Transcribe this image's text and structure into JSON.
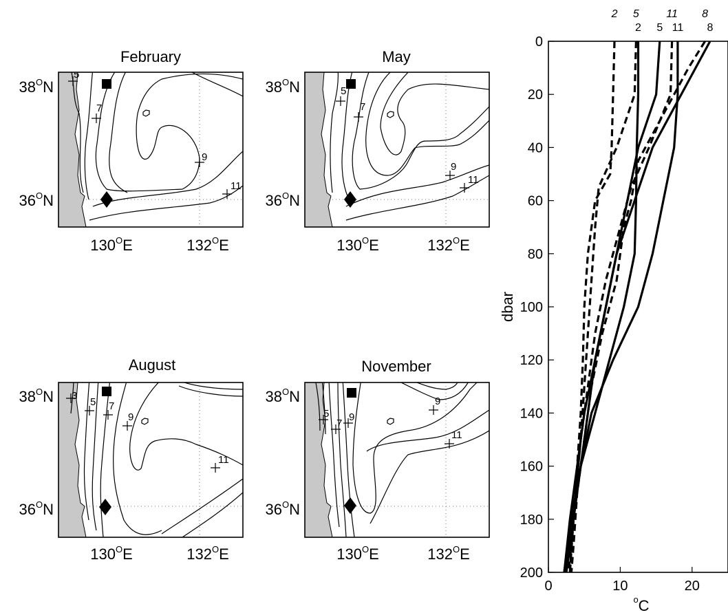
{
  "maps": [
    {
      "key": "feb",
      "title": "February"
    },
    {
      "key": "may",
      "title": "May"
    },
    {
      "key": "aug",
      "title": "August"
    },
    {
      "key": "nov",
      "title": "November"
    }
  ],
  "map_axes": {
    "lat_labels": [
      {
        "num": "38",
        "deg": "O",
        "hem": "N"
      },
      {
        "num": "36",
        "deg": "O",
        "hem": "N"
      }
    ],
    "lon_labels": [
      {
        "num": "130",
        "deg": "O",
        "hem": "E"
      },
      {
        "num": "132",
        "deg": "O",
        "hem": "E"
      }
    ]
  },
  "contour_labels": {
    "feb": [
      "5",
      "7",
      "9",
      "11"
    ],
    "may": [
      "5",
      "7",
      "9",
      "11"
    ],
    "aug": [
      "3",
      "5",
      "7",
      "9",
      "11"
    ],
    "nov": [
      "5",
      "7",
      "9",
      "9",
      "11"
    ]
  },
  "colors": {
    "land": "#c8c8c8",
    "line": "#000000",
    "grid": "#777777"
  },
  "chart_data": {
    "type": "line",
    "xlabel_deg": "o",
    "xlabel_unit": "C",
    "ylabel": "dbar",
    "xlim": [
      0,
      25
    ],
    "ylim": [
      200,
      0
    ],
    "xticks": [
      0,
      10,
      20
    ],
    "yticks": [
      0,
      20,
      40,
      60,
      80,
      100,
      120,
      140,
      160,
      180,
      200
    ],
    "series": [
      {
        "name": "2",
        "style": "solid",
        "points": [
          [
            12.5,
            0
          ],
          [
            12.5,
            20
          ],
          [
            12.3,
            40
          ],
          [
            12.2,
            60
          ],
          [
            12.0,
            80
          ],
          [
            10.5,
            100
          ],
          [
            8.5,
            120
          ],
          [
            6.5,
            140
          ],
          [
            4.5,
            160
          ],
          [
            3.5,
            180
          ],
          [
            2.5,
            200
          ]
        ]
      },
      {
        "name": "5",
        "style": "solid",
        "points": [
          [
            15.5,
            0
          ],
          [
            15.0,
            20
          ],
          [
            12.5,
            40
          ],
          [
            11.0,
            60
          ],
          [
            9.5,
            80
          ],
          [
            8.0,
            100
          ],
          [
            6.5,
            120
          ],
          [
            5.0,
            140
          ],
          [
            4.0,
            160
          ],
          [
            3.0,
            180
          ],
          [
            2.2,
            200
          ]
        ]
      },
      {
        "name": "11",
        "style": "solid",
        "points": [
          [
            18.0,
            0
          ],
          [
            18.0,
            20
          ],
          [
            17.5,
            40
          ],
          [
            16.0,
            60
          ],
          [
            14.5,
            80
          ],
          [
            12.5,
            100
          ],
          [
            9.0,
            120
          ],
          [
            6.0,
            140
          ],
          [
            4.5,
            160
          ],
          [
            3.2,
            180
          ],
          [
            2.2,
            200
          ]
        ]
      },
      {
        "name": "8",
        "style": "solid",
        "points": [
          [
            22.5,
            0
          ],
          [
            20.5,
            10
          ],
          [
            17.5,
            25
          ],
          [
            14.5,
            40
          ],
          [
            12.0,
            60
          ],
          [
            9.5,
            80
          ],
          [
            8.0,
            100
          ],
          [
            6.5,
            120
          ],
          [
            5.5,
            140
          ],
          [
            4.5,
            160
          ],
          [
            3.2,
            180
          ],
          [
            2.2,
            200
          ]
        ]
      },
      {
        "name": "2",
        "style": "dashed",
        "points": [
          [
            9.2,
            0
          ],
          [
            9.0,
            20
          ],
          [
            8.8,
            40
          ],
          [
            8.6,
            50
          ],
          [
            6.5,
            60
          ],
          [
            5.5,
            80
          ],
          [
            5.0,
            100
          ],
          [
            4.8,
            120
          ],
          [
            4.5,
            140
          ],
          [
            4.0,
            160
          ],
          [
            3.5,
            180
          ],
          [
            3.0,
            200
          ]
        ]
      },
      {
        "name": "5",
        "style": "dashed",
        "points": [
          [
            12.2,
            0
          ],
          [
            12.0,
            20
          ],
          [
            9.5,
            40
          ],
          [
            7.0,
            55
          ],
          [
            6.5,
            70
          ],
          [
            6.0,
            90
          ],
          [
            5.5,
            110
          ],
          [
            5.0,
            130
          ],
          [
            4.5,
            150
          ],
          [
            3.8,
            170
          ],
          [
            3.2,
            190
          ],
          [
            2.8,
            200
          ]
        ]
      },
      {
        "name": "11",
        "style": "dashed",
        "points": [
          [
            17.2,
            0
          ],
          [
            17.0,
            20
          ],
          [
            14.0,
            40
          ],
          [
            11.5,
            55
          ],
          [
            10.0,
            70
          ],
          [
            8.0,
            90
          ],
          [
            6.5,
            110
          ],
          [
            5.5,
            130
          ],
          [
            4.5,
            150
          ],
          [
            3.8,
            170
          ],
          [
            3.2,
            190
          ],
          [
            3.0,
            200
          ]
        ]
      },
      {
        "name": "8",
        "style": "dashed",
        "points": [
          [
            21.8,
            0
          ],
          [
            19.5,
            10
          ],
          [
            17.5,
            20
          ],
          [
            14.5,
            35
          ],
          [
            12.5,
            45
          ],
          [
            11.5,
            60
          ],
          [
            10.5,
            70
          ],
          [
            9.5,
            90
          ],
          [
            7.5,
            110
          ],
          [
            6.0,
            130
          ],
          [
            5.0,
            150
          ],
          [
            4.0,
            170
          ],
          [
            3.5,
            190
          ],
          [
            3.2,
            200
          ]
        ]
      }
    ],
    "top_labels": [
      {
        "text": "2",
        "x": 9.2,
        "row": "upper",
        "style": "italic"
      },
      {
        "text": "5",
        "x": 12.2,
        "row": "upper",
        "style": "italic"
      },
      {
        "text": "11",
        "x": 17.2,
        "row": "upper",
        "style": "italic"
      },
      {
        "text": "8",
        "x": 21.8,
        "row": "upper",
        "style": "italic"
      },
      {
        "text": "2",
        "x": 12.5,
        "row": "lower",
        "style": "normal"
      },
      {
        "text": "5",
        "x": 15.5,
        "row": "lower",
        "style": "normal"
      },
      {
        "text": "11",
        "x": 18.0,
        "row": "lower",
        "style": "normal"
      },
      {
        "text": "8",
        "x": 22.5,
        "row": "lower",
        "style": "normal"
      }
    ]
  }
}
